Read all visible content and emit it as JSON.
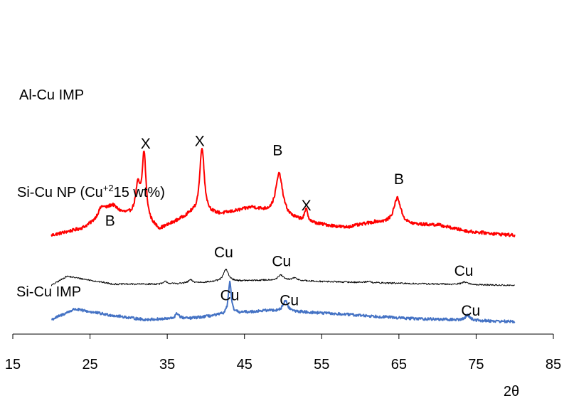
{
  "chart_data": {
    "type": "line",
    "title": "",
    "xlabel": "2θ",
    "ylabel": "",
    "xlim": [
      15,
      85
    ],
    "xticks": [
      15,
      25,
      35,
      45,
      55,
      65,
      75,
      85
    ],
    "x_range": [
      20,
      80
    ],
    "grid": false,
    "legend": "none",
    "series": [
      {
        "name": "Al-Cu IMP",
        "label": "Al-Cu IMP",
        "color": "#ff0000",
        "offset": 3.45,
        "noise": 0.06,
        "baseline": [
          [
            20,
            0.3
          ],
          [
            24,
            0.55
          ],
          [
            28,
            1.1
          ],
          [
            31,
            1.0
          ],
          [
            34,
            0.5
          ],
          [
            38,
            1.1
          ],
          [
            42,
            1.1
          ],
          [
            46,
            1.35
          ],
          [
            50,
            1.0
          ],
          [
            54,
            0.75
          ],
          [
            58,
            0.6
          ],
          [
            62,
            0.8
          ],
          [
            66,
            0.7
          ],
          [
            70,
            0.7
          ],
          [
            74,
            0.45
          ],
          [
            80,
            0.3
          ]
        ],
        "peaks": [
          {
            "x": 26.5,
            "h": 0.4,
            "w": 0.6
          },
          {
            "x": 27.8,
            "h": 0.3,
            "w": 0.9
          },
          {
            "x": 31.2,
            "h": 1.1,
            "w": 0.35
          },
          {
            "x": 32.0,
            "h": 2.5,
            "w": 0.3
          },
          {
            "x": 39.5,
            "h": 2.55,
            "w": 0.35
          },
          {
            "x": 49.5,
            "h": 1.6,
            "w": 0.55
          },
          {
            "x": 53.0,
            "h": 0.45,
            "w": 0.25
          },
          {
            "x": 64.8,
            "h": 1.0,
            "w": 0.55
          }
        ]
      },
      {
        "name": "Si-Cu NP",
        "label": "Si-Cu NP  (Cu",
        "label_sup": "+2",
        "label_tail": "15 wt%)",
        "color": "#000000",
        "offset": 1.85,
        "noise": 0.03,
        "baseline": [
          [
            20,
            0.0
          ],
          [
            22,
            0.35
          ],
          [
            25,
            0.2
          ],
          [
            28,
            0.05
          ],
          [
            35,
            0.05
          ],
          [
            42,
            0.15
          ],
          [
            48,
            0.2
          ],
          [
            55,
            0.15
          ],
          [
            62,
            0.1
          ],
          [
            70,
            0.05
          ],
          [
            80,
            0.0
          ]
        ],
        "peaks": [
          {
            "x": 34.8,
            "h": 0.1,
            "w": 0.3
          },
          {
            "x": 38.0,
            "h": 0.12,
            "w": 0.3
          },
          {
            "x": 42.6,
            "h": 0.45,
            "w": 0.4
          },
          {
            "x": 49.7,
            "h": 0.2,
            "w": 0.4
          },
          {
            "x": 51.5,
            "h": 0.1,
            "w": 0.5
          },
          {
            "x": 61.0,
            "h": 0.05,
            "w": 0.4
          },
          {
            "x": 73.5,
            "h": 0.1,
            "w": 0.5
          }
        ]
      },
      {
        "name": "Si-Cu IMP",
        "label": "Si-Cu IMP",
        "color": "#4472c4",
        "offset": 0.55,
        "noise": 0.05,
        "baseline": [
          [
            20,
            0.0
          ],
          [
            23,
            0.4
          ],
          [
            27,
            0.2
          ],
          [
            32,
            0.0
          ],
          [
            38,
            0.05
          ],
          [
            44,
            0.25
          ],
          [
            48,
            0.35
          ],
          [
            52,
            0.3
          ],
          [
            58,
            0.2
          ],
          [
            66,
            0.05
          ],
          [
            80,
            -0.08
          ]
        ],
        "peaks": [
          {
            "x": 36.3,
            "h": 0.2,
            "w": 0.3
          },
          {
            "x": 43.1,
            "h": 1.2,
            "w": 0.22
          },
          {
            "x": 50.3,
            "h": 0.4,
            "w": 0.35
          },
          {
            "x": 73.9,
            "h": 0.2,
            "w": 0.35
          }
        ]
      }
    ],
    "annotations": [
      {
        "text": "X",
        "x": 32.2,
        "y": 7.05
      },
      {
        "text": "X",
        "x": 39.2,
        "y": 7.15
      },
      {
        "text": "B",
        "x": 49.3,
        "y": 6.8
      },
      {
        "text": "X",
        "x": 53.0,
        "y": 4.7
      },
      {
        "text": "B",
        "x": 65.0,
        "y": 5.7
      },
      {
        "text": "B",
        "x": 27.6,
        "y": 4.12
      },
      {
        "text": "Cu",
        "x": 42.3,
        "y": 2.92
      },
      {
        "text": "Cu",
        "x": 49.8,
        "y": 2.58
      },
      {
        "text": "Cu",
        "x": 73.4,
        "y": 2.22
      },
      {
        "text": "Cu",
        "x": 43.1,
        "y": 1.28
      },
      {
        "text": "Cu",
        "x": 50.8,
        "y": 1.1
      },
      {
        "text": "Cu",
        "x": 74.3,
        "y": 0.7
      }
    ]
  }
}
